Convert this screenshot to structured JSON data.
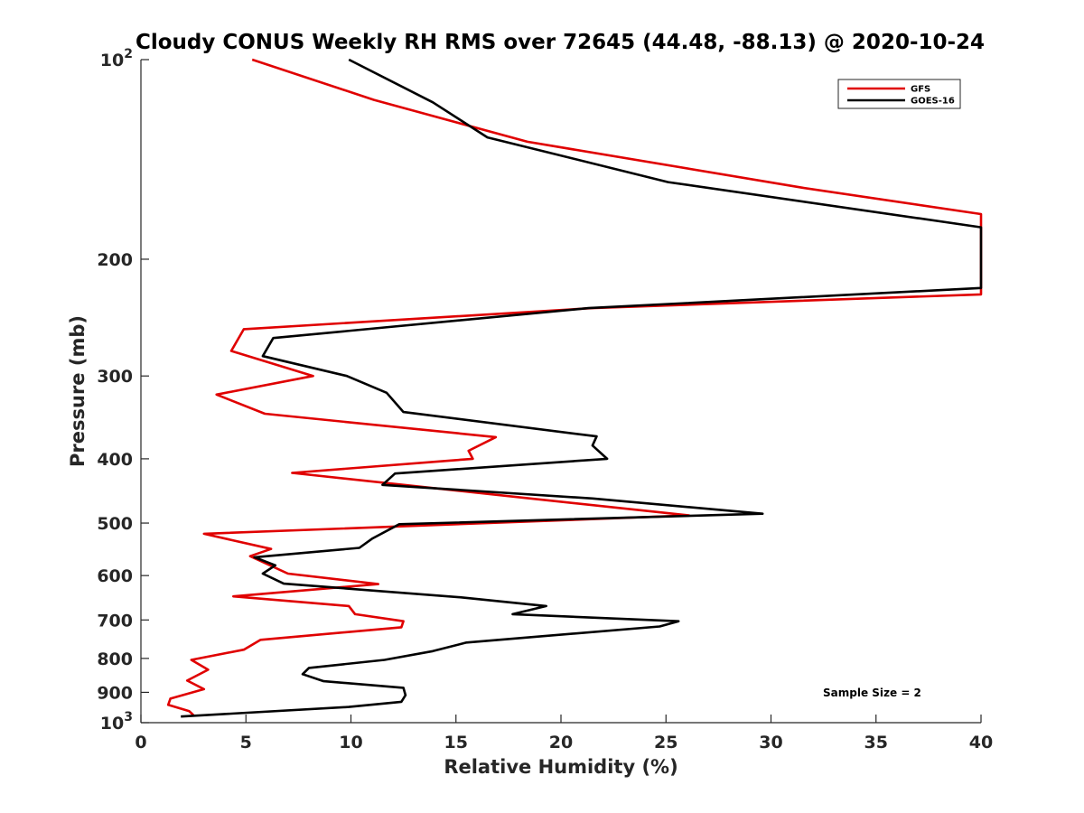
{
  "chart_data": {
    "type": "line",
    "title": "Cloudy CONUS Weekly RH RMS over 72645 (44.48, -88.13) @ 2020-10-24",
    "xlabel": "Relative Humidity (%)",
    "ylabel": "Pressure (mb)",
    "xlim": [
      0,
      40
    ],
    "ylim": [
      100,
      1000
    ],
    "y_scale": "log",
    "y_reversed": true,
    "grid": false,
    "legend_position": "top-right",
    "x_ticks": [
      0,
      5,
      10,
      15,
      20,
      25,
      30,
      35,
      40
    ],
    "x_tick_labels": [
      "0",
      "5",
      "10",
      "15",
      "20",
      "25",
      "30",
      "35",
      "40"
    ],
    "y_ticks": [
      100,
      200,
      300,
      400,
      500,
      600,
      700,
      800,
      900,
      1000
    ],
    "y_tick_labels": [
      {
        "base": "10",
        "exp": "2"
      },
      {
        "base": "200",
        "exp": ""
      },
      {
        "base": "300",
        "exp": ""
      },
      {
        "base": "400",
        "exp": ""
      },
      {
        "base": "500",
        "exp": ""
      },
      {
        "base": "600",
        "exp": ""
      },
      {
        "base": "700",
        "exp": ""
      },
      {
        "base": "800",
        "exp": ""
      },
      {
        "base": "900",
        "exp": ""
      },
      {
        "base": "10",
        "exp": "3"
      }
    ],
    "annotation": "Sample Size = 2",
    "series": [
      {
        "name": "GFS",
        "color": "#e00000",
        "points": [
          [
            5.3,
            100
          ],
          [
            11.1,
            115
          ],
          [
            18.4,
            133
          ],
          [
            31.5,
            156
          ],
          [
            40,
            171
          ],
          [
            40,
            226
          ],
          [
            21.5,
            237
          ],
          [
            4.9,
            255
          ],
          [
            4.3,
            275
          ],
          [
            8.2,
            300
          ],
          [
            3.6,
            320
          ],
          [
            5.9,
            342
          ],
          [
            16.9,
            371
          ],
          [
            15.6,
            389
          ],
          [
            15.8,
            400
          ],
          [
            7.2,
            420
          ],
          [
            26.1,
            487
          ],
          [
            3.0,
            519
          ],
          [
            6.2,
            547
          ],
          [
            5.2,
            561
          ],
          [
            7.0,
            596
          ],
          [
            11.3,
            618
          ],
          [
            4.4,
            645
          ],
          [
            9.9,
            667
          ],
          [
            10.2,
            686
          ],
          [
            12.5,
            703
          ],
          [
            12.4,
            718
          ],
          [
            5.7,
            750
          ],
          [
            4.9,
            776
          ],
          [
            2.4,
            804
          ],
          [
            3.2,
            832
          ],
          [
            2.2,
            864
          ],
          [
            3.0,
            890
          ],
          [
            1.4,
            920
          ],
          [
            1.3,
            940
          ],
          [
            2.3,
            961
          ],
          [
            2.5,
            974
          ]
        ]
      },
      {
        "name": "GOES-16",
        "color": "#000000",
        "points": [
          [
            9.9,
            100
          ],
          [
            13.9,
            116
          ],
          [
            16.5,
            131
          ],
          [
            25.1,
            153
          ],
          [
            40,
            179
          ],
          [
            40,
            221
          ],
          [
            21.3,
            237
          ],
          [
            6.3,
            263
          ],
          [
            5.8,
            280
          ],
          [
            9.8,
            300
          ],
          [
            11.7,
            318
          ],
          [
            12.5,
            340
          ],
          [
            21.7,
            370
          ],
          [
            21.5,
            382
          ],
          [
            22.2,
            400
          ],
          [
            12.1,
            421
          ],
          [
            11.5,
            438
          ],
          [
            21.5,
            459
          ],
          [
            29.6,
            484
          ],
          [
            12.3,
            502
          ],
          [
            11.0,
            528
          ],
          [
            10.4,
            545
          ],
          [
            5.4,
            563
          ],
          [
            6.4,
            579
          ],
          [
            5.8,
            596
          ],
          [
            6.8,
            617
          ],
          [
            15.2,
            647
          ],
          [
            19.3,
            667
          ],
          [
            17.7,
            686
          ],
          [
            25.6,
            703
          ],
          [
            24.7,
            716
          ],
          [
            15.5,
            757
          ],
          [
            13.9,
            780
          ],
          [
            11.6,
            804
          ],
          [
            8.0,
            827
          ],
          [
            7.7,
            845
          ],
          [
            8.7,
            866
          ],
          [
            12.5,
            886
          ],
          [
            12.6,
            909
          ],
          [
            12.4,
            930
          ],
          [
            9.9,
            947
          ],
          [
            1.9,
            979
          ]
        ]
      }
    ]
  }
}
